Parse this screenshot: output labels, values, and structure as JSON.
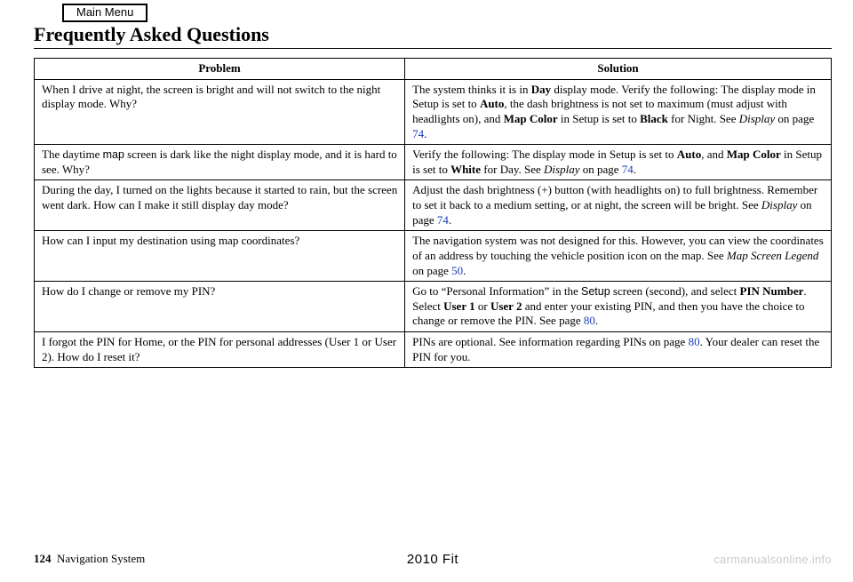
{
  "main_menu_label": "Main Menu",
  "heading": "Frequently Asked Questions",
  "table": {
    "col_widths_pct": [
      46.5,
      53.5
    ],
    "border_color": "#000000",
    "headers": {
      "problem": "Problem",
      "solution": "Solution"
    },
    "rows": [
      {
        "problem_html": "When I drive at night, the screen is bright and will not switch to the night display mode. Why?",
        "solution_html": "The system thinks it is in <span class='bold'>Day</span> display mode. Verify the following: The display mode in Setup is set to <span class='bold'>Auto</span>, the dash brightness is not set to maximum (must adjust with headlights on), and <span class='bold'>Map Color</span> in Setup is set to <span class='bold'>Black</span> for Night. See <span class='italic'>Display</span> on page <span class='link'>74</span>."
      },
      {
        "problem_html": "The daytime <span class='sans'>map</span> screen is dark like the night display mode, and it is hard to see. Why?",
        "solution_html": "Verify the following: The display mode in Setup is set to <span class='bold'>Auto</span>, and <span class='bold'>Map Color</span> in Setup is set to <span class='bold'>White</span> for Day. See <span class='italic'>Display</span> on page <span class='link'>74</span>."
      },
      {
        "problem_html": "During the day, I turned on the lights because it started to rain, but the screen went dark. How can I make it still display day mode?",
        "solution_html": "Adjust the dash brightness (+) button (with headlights on) to full brightness. Remember to set it back to a medium setting, or at night, the screen will be bright. See <span class='italic'>Display</span> on page <span class='link'>74</span>."
      },
      {
        "problem_html": "How can I input my destination using map coordinates?",
        "solution_html": "The navigation system was not designed for this. However, you can view the coordinates of an address by touching the vehicle position icon on the map. See <span class='italic'>Map Screen Legend</span> on page <span class='link'>50</span>."
      },
      {
        "problem_html": "How do I change or remove my PIN?",
        "solution_html": "Go to “Personal Information” in the <span class='sans'>Setup</span> screen (second), and select <span class='bold'>PIN Number</span>. Select <span class='bold'>User 1</span> or <span class='bold'>User 2</span> and enter your existing PIN, and then you have the choice to change or remove the PIN. See page <span class='link'>80</span>."
      },
      {
        "problem_html": "I forgot the PIN for Home, or the PIN for personal addresses (User 1 or User 2). How do I reset it?",
        "solution_html": "PINs are optional. See information regarding PINs on page <span class='link'>80</span>. Your dealer can reset the PIN for you."
      }
    ]
  },
  "footer": {
    "page_number": "124",
    "section": "Navigation System",
    "book_title": "2010 Fit"
  },
  "watermark": "carmanualsonline.info",
  "colors": {
    "text": "#000000",
    "background": "#ffffff",
    "link": "#1a3fb5",
    "watermark": "#c9c9c9"
  },
  "typography": {
    "body_font": "Times New Roman",
    "sans_font": "Arial",
    "heading_fontsize_pt": 17,
    "body_fontsize_pt": 10,
    "footer_fontsize_pt": 10
  }
}
